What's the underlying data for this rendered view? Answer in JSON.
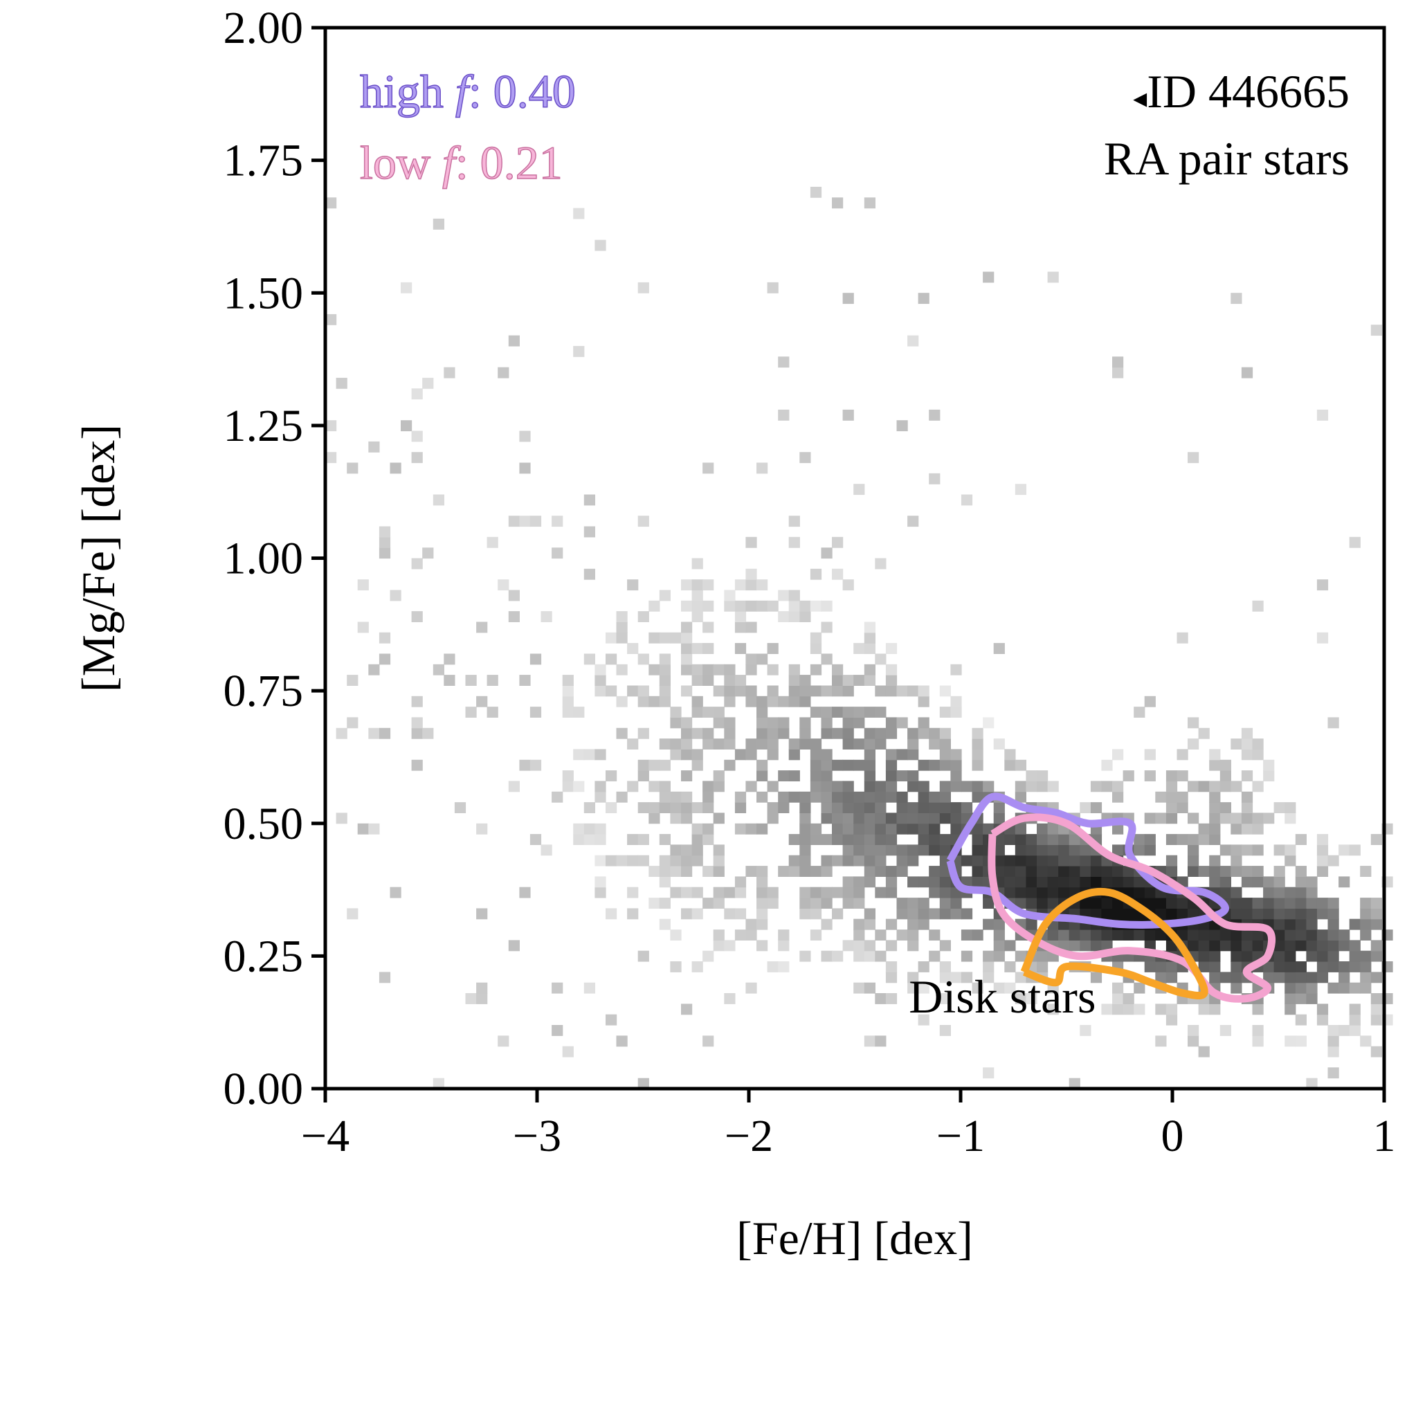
{
  "chart_data": {
    "type": "heatmap",
    "xlabel": "[Fe/H] [dex]",
    "ylabel": "[Mg/Fe] [dex]",
    "xlim": [
      -4,
      1
    ],
    "ylim": [
      0,
      2
    ],
    "x_ticks": [
      -4,
      -3,
      -2,
      -1,
      0,
      1
    ],
    "x_tick_labels": [
      "−4",
      "−3",
      "−2",
      "−1",
      "0",
      "1"
    ],
    "y_ticks": [
      0,
      0.25,
      0.5,
      0.75,
      1.0,
      1.25,
      1.5,
      1.75,
      2.0
    ],
    "y_tick_labels": [
      "0.00",
      "0.25",
      "0.50",
      "0.75",
      "1.00",
      "1.25",
      "1.50",
      "1.75",
      "2.00"
    ],
    "grid": false,
    "colormap": "greys",
    "density_ridge": [
      {
        "feh": -3.5,
        "mgfe": 0.75
      },
      {
        "feh": -3.0,
        "mgfe": 0.68
      },
      {
        "feh": -2.5,
        "mgfe": 0.6
      },
      {
        "feh": -2.0,
        "mgfe": 0.6
      },
      {
        "feh": -1.5,
        "mgfe": 0.55
      },
      {
        "feh": -1.0,
        "mgfe": 0.45
      },
      {
        "feh": -0.5,
        "mgfe": 0.37
      },
      {
        "feh": 0.0,
        "mgfe": 0.32
      },
      {
        "feh": 0.5,
        "mgfe": 0.28
      },
      {
        "feh": 1.0,
        "mgfe": 0.27
      }
    ],
    "legend": {
      "placement": "top-left",
      "high": {
        "prefix": "high ",
        "sym": "f",
        "value": ": 0.40",
        "color": "#b09ef2",
        "edge": "#6a4fc8"
      },
      "low": {
        "prefix": "low ",
        "sym": "f",
        "value": ": 0.21",
        "color": "#f7b6d9",
        "edge": "#c9709f"
      }
    },
    "annotation": {
      "placement": "top-right",
      "marker": "◂",
      "id_text": "ID 446665",
      "subtitle": "RA pair stars"
    },
    "series": [
      {
        "name": "high f",
        "color": "#a98df2",
        "contour": [
          [
            -1.05,
            0.43
          ],
          [
            -0.95,
            0.5
          ],
          [
            -0.85,
            0.55
          ],
          [
            -0.7,
            0.53
          ],
          [
            -0.55,
            0.52
          ],
          [
            -0.4,
            0.5
          ],
          [
            -0.2,
            0.5
          ],
          [
            -0.2,
            0.44
          ],
          [
            -0.05,
            0.38
          ],
          [
            0.15,
            0.37
          ],
          [
            0.25,
            0.34
          ],
          [
            0.15,
            0.32
          ],
          [
            -0.05,
            0.31
          ],
          [
            -0.25,
            0.31
          ],
          [
            -0.45,
            0.32
          ],
          [
            -0.7,
            0.33
          ],
          [
            -0.85,
            0.37
          ],
          [
            -1.0,
            0.38
          ],
          [
            -1.05,
            0.43
          ]
        ]
      },
      {
        "name": "low f",
        "color": "#f4a3cf",
        "contour": [
          [
            -0.85,
            0.48
          ],
          [
            -0.7,
            0.51
          ],
          [
            -0.5,
            0.5
          ],
          [
            -0.3,
            0.44
          ],
          [
            -0.1,
            0.41
          ],
          [
            0.1,
            0.36
          ],
          [
            0.25,
            0.31
          ],
          [
            0.45,
            0.3
          ],
          [
            0.45,
            0.25
          ],
          [
            0.35,
            0.22
          ],
          [
            0.45,
            0.19
          ],
          [
            0.35,
            0.17
          ],
          [
            0.2,
            0.18
          ],
          [
            0.05,
            0.24
          ],
          [
            -0.2,
            0.26
          ],
          [
            -0.45,
            0.25
          ],
          [
            -0.65,
            0.28
          ],
          [
            -0.8,
            0.33
          ],
          [
            -0.85,
            0.4
          ],
          [
            -0.85,
            0.48
          ]
        ]
      },
      {
        "name": "Disk stars",
        "color": "#f8a427",
        "contour": [
          [
            -0.7,
            0.22
          ],
          [
            -0.6,
            0.31
          ],
          [
            -0.45,
            0.36
          ],
          [
            -0.3,
            0.37
          ],
          [
            -0.15,
            0.34
          ],
          [
            0.0,
            0.29
          ],
          [
            0.1,
            0.23
          ],
          [
            0.15,
            0.18
          ],
          [
            0.05,
            0.18
          ],
          [
            -0.1,
            0.2
          ],
          [
            -0.25,
            0.22
          ],
          [
            -0.5,
            0.23
          ],
          [
            -0.55,
            0.2
          ],
          [
            -0.7,
            0.22
          ]
        ]
      }
    ],
    "annotations": [
      {
        "text": "Disk stars",
        "color": "#f8a427",
        "feh": -0.95,
        "mgfe": 0.15
      }
    ]
  }
}
